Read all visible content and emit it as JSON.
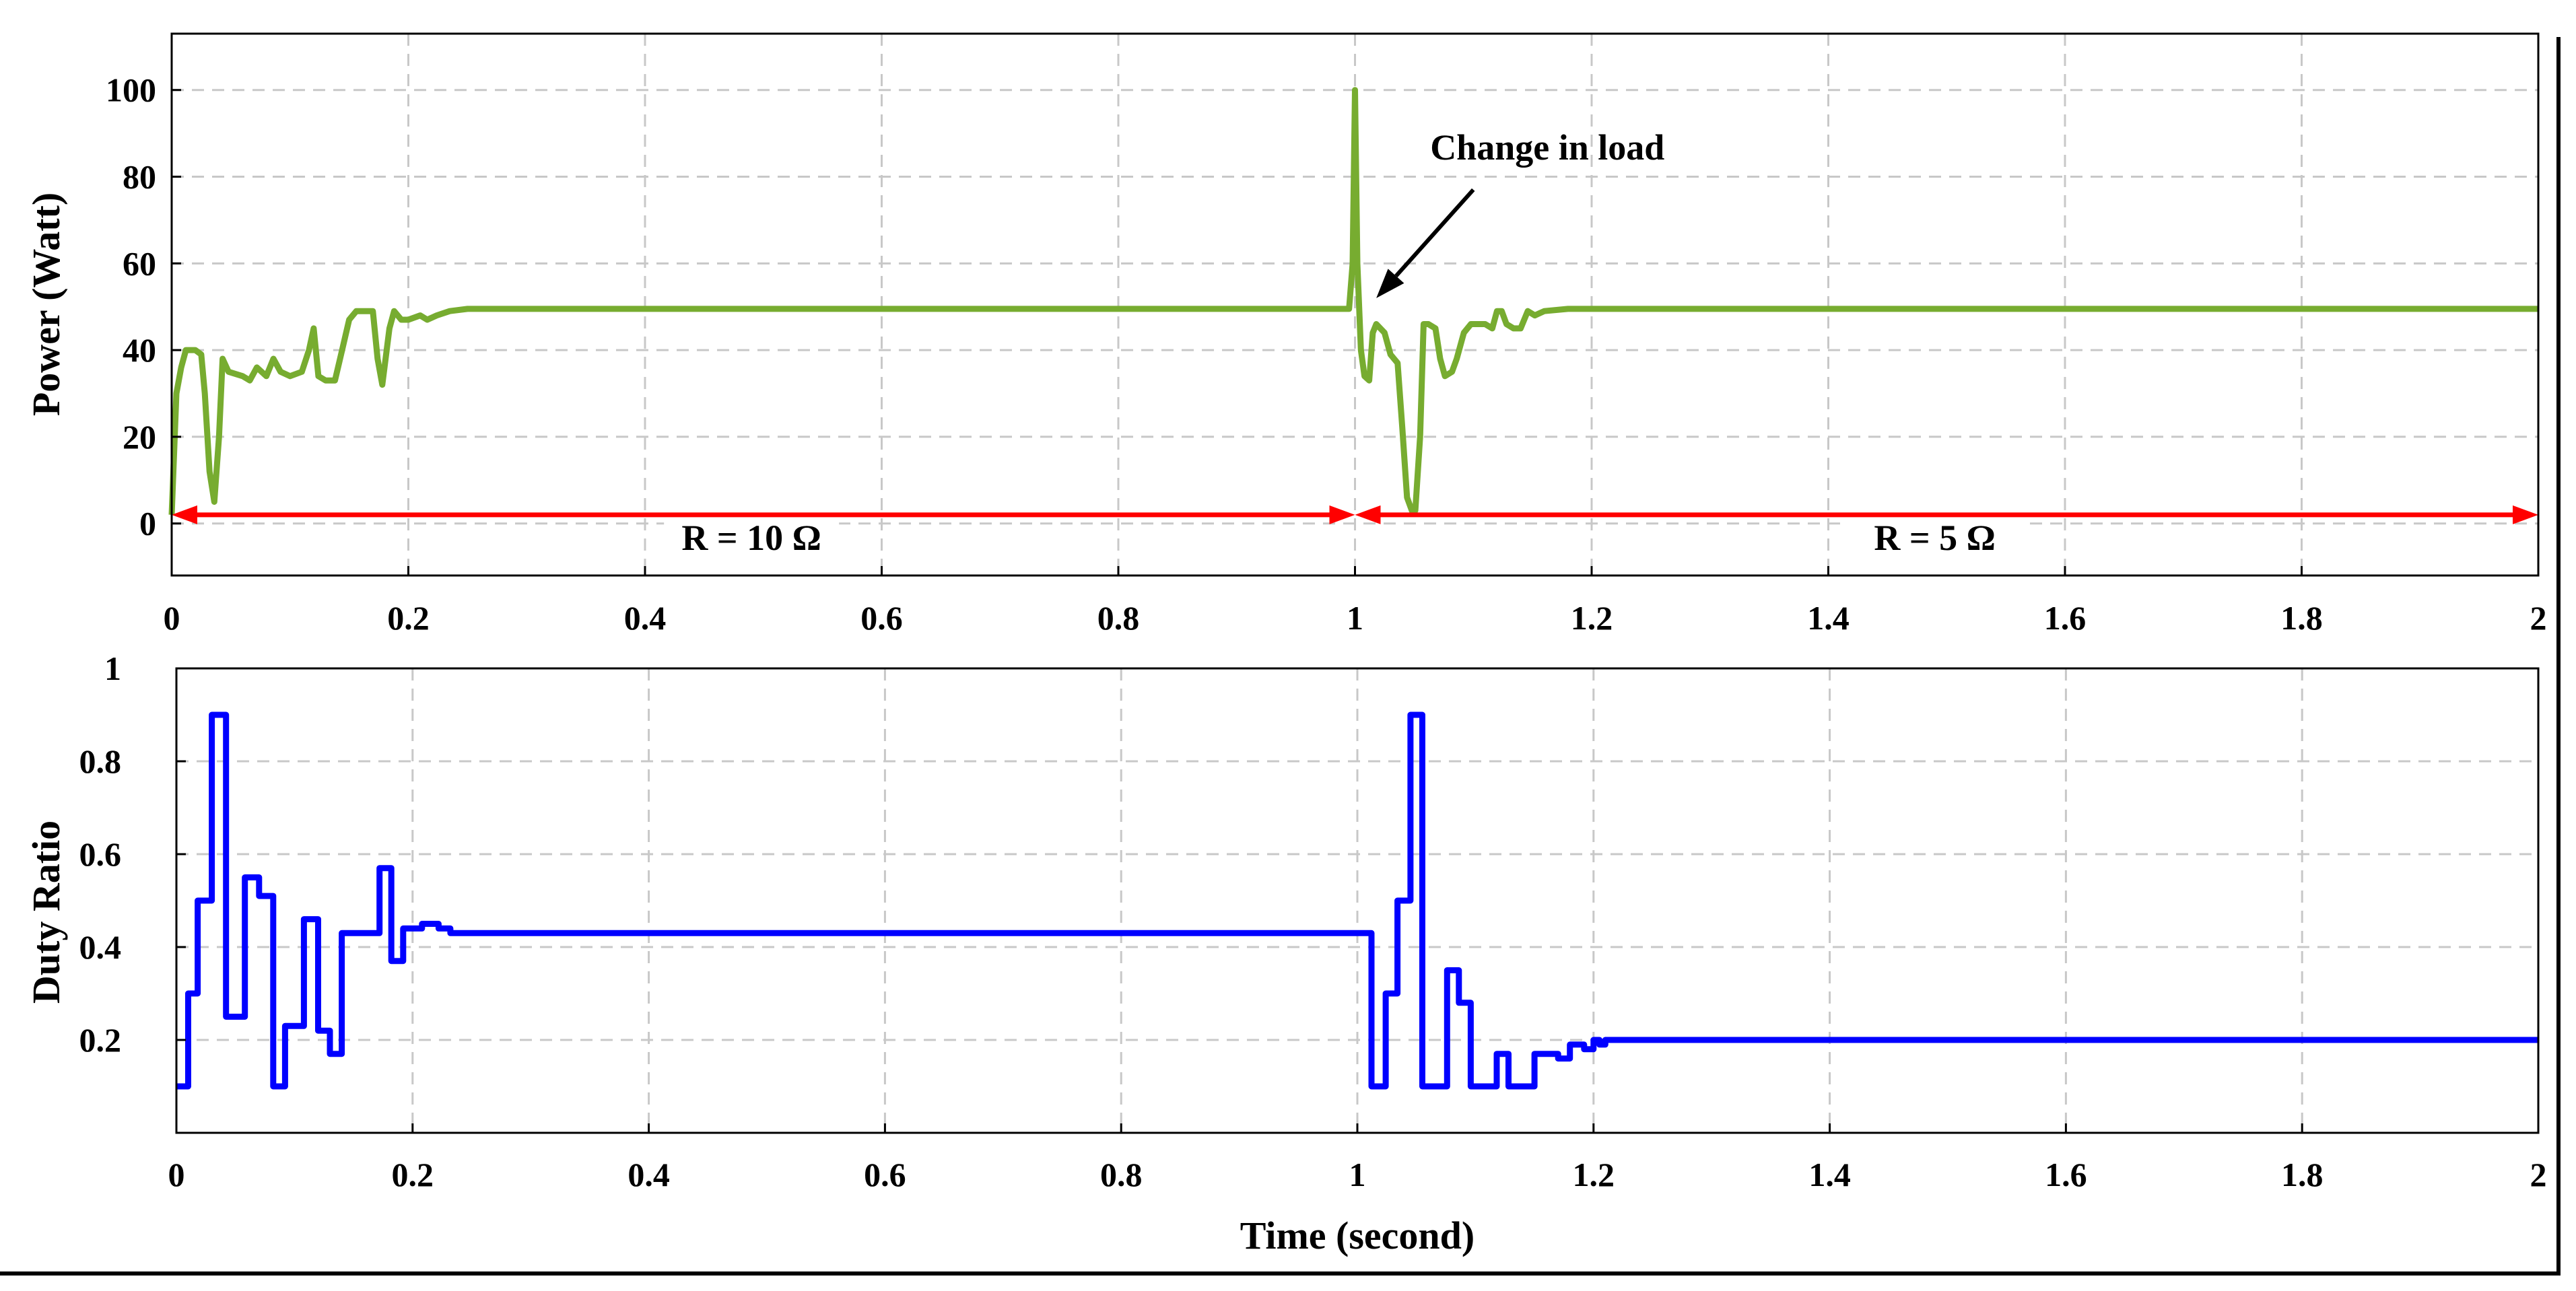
{
  "chart_data": [
    {
      "type": "line",
      "ylabel": "Power (Watt)",
      "xlabel": "",
      "xlim": [
        0,
        2
      ],
      "ylim": [
        -12,
        113
      ],
      "x_ticks": [
        "0",
        "0.2",
        "0.4",
        "0.6",
        "0.8",
        "1",
        "1.2",
        "1.4",
        "1.6",
        "1.8",
        "2"
      ],
      "y_ticks": [
        "0",
        "20",
        "40",
        "60",
        "80",
        "100"
      ],
      "grid": true,
      "series": [
        {
          "name": "Power",
          "color": "#77ac30",
          "points": [
            [
              0.0,
              2
            ],
            [
              0.004,
              30
            ],
            [
              0.008,
              36
            ],
            [
              0.012,
              40
            ],
            [
              0.02,
              40
            ],
            [
              0.025,
              39
            ],
            [
              0.028,
              30
            ],
            [
              0.032,
              12
            ],
            [
              0.036,
              5
            ],
            [
              0.04,
              20
            ],
            [
              0.043,
              38
            ],
            [
              0.048,
              35
            ],
            [
              0.06,
              34
            ],
            [
              0.066,
              33
            ],
            [
              0.072,
              36
            ],
            [
              0.08,
              34
            ],
            [
              0.086,
              38
            ],
            [
              0.092,
              35
            ],
            [
              0.1,
              34
            ],
            [
              0.11,
              35
            ],
            [
              0.116,
              40
            ],
            [
              0.12,
              45
            ],
            [
              0.124,
              34
            ],
            [
              0.13,
              33
            ],
            [
              0.138,
              33
            ],
            [
              0.144,
              40
            ],
            [
              0.15,
              47
            ],
            [
              0.156,
              49
            ],
            [
              0.166,
              49
            ],
            [
              0.17,
              49
            ],
            [
              0.174,
              38
            ],
            [
              0.178,
              32
            ],
            [
              0.184,
              45
            ],
            [
              0.188,
              49
            ],
            [
              0.194,
              47
            ],
            [
              0.2,
              47
            ],
            [
              0.21,
              48
            ],
            [
              0.216,
              47
            ],
            [
              0.224,
              48
            ],
            [
              0.235,
              49
            ],
            [
              0.25,
              49.5
            ],
            [
              0.4,
              49.5
            ],
            [
              0.6,
              49.5
            ],
            [
              0.8,
              49.5
            ],
            [
              0.995,
              49.5
            ],
            [
              0.998,
              60
            ],
            [
              1.0,
              100
            ],
            [
              1.002,
              60
            ],
            [
              1.005,
              40
            ],
            [
              1.008,
              34
            ],
            [
              1.012,
              33
            ],
            [
              1.015,
              44
            ],
            [
              1.018,
              46
            ],
            [
              1.025,
              44
            ],
            [
              1.03,
              39
            ],
            [
              1.036,
              37
            ],
            [
              1.04,
              22
            ],
            [
              1.044,
              6
            ],
            [
              1.048,
              3
            ],
            [
              1.051,
              3
            ],
            [
              1.055,
              20
            ],
            [
              1.058,
              46
            ],
            [
              1.062,
              46
            ],
            [
              1.068,
              45
            ],
            [
              1.072,
              38
            ],
            [
              1.076,
              34
            ],
            [
              1.082,
              35
            ],
            [
              1.086,
              38
            ],
            [
              1.092,
              44
            ],
            [
              1.098,
              46
            ],
            [
              1.11,
              46
            ],
            [
              1.116,
              45
            ],
            [
              1.12,
              49
            ],
            [
              1.124,
              49
            ],
            [
              1.128,
              46
            ],
            [
              1.134,
              45
            ],
            [
              1.14,
              45
            ],
            [
              1.146,
              49
            ],
            [
              1.152,
              48
            ],
            [
              1.16,
              49
            ],
            [
              1.18,
              49.5
            ],
            [
              1.4,
              49.5
            ],
            [
              1.6,
              49.5
            ],
            [
              1.8,
              49.5
            ],
            [
              2.0,
              49.5
            ]
          ]
        },
        {
          "name": "Load region markers",
          "color": "#ff0000",
          "arrows": [
            {
              "from": 0.0,
              "to": 1.0,
              "y": 2,
              "label": "R = 10 Ω",
              "label_x": 0.49
            },
            {
              "from": 1.0,
              "to": 2.0,
              "y": 2,
              "label": "R = 5 Ω",
              "label_x": 1.49
            }
          ]
        }
      ],
      "annotations": [
        {
          "text": "Change in load",
          "text_x": 1.125,
          "text_y": 84,
          "arrow_to_x": 1.018,
          "arrow_to_y": 52,
          "arrow_from_x": 1.1,
          "arrow_from_y": 77
        }
      ]
    },
    {
      "type": "line",
      "ylabel": "Duty Ratio",
      "xlabel": "Time (second)",
      "xlim": [
        0,
        2
      ],
      "ylim": [
        0,
        1
      ],
      "x_ticks": [
        "0",
        "0.2",
        "0.4",
        "0.6",
        "0.8",
        "1",
        "1.2",
        "1.4",
        "1.6",
        "1.8",
        "2"
      ],
      "y_ticks": [
        "0.2",
        "0.4",
        "0.6",
        "0.8",
        "1"
      ],
      "grid": true,
      "series": [
        {
          "name": "Duty Ratio",
          "color": "#0000ff",
          "step": true,
          "points": [
            [
              0.0,
              0.1
            ],
            [
              0.01,
              0.3
            ],
            [
              0.018,
              0.5
            ],
            [
              0.03,
              0.9
            ],
            [
              0.042,
              0.25
            ],
            [
              0.058,
              0.55
            ],
            [
              0.07,
              0.51
            ],
            [
              0.082,
              0.1
            ],
            [
              0.092,
              0.23
            ],
            [
              0.108,
              0.46
            ],
            [
              0.12,
              0.22
            ],
            [
              0.13,
              0.17
            ],
            [
              0.14,
              0.43
            ],
            [
              0.16,
              0.43
            ],
            [
              0.172,
              0.57
            ],
            [
              0.182,
              0.37
            ],
            [
              0.192,
              0.44
            ],
            [
              0.208,
              0.45
            ],
            [
              0.222,
              0.44
            ],
            [
              0.232,
              0.43
            ],
            [
              1.005,
              0.43
            ],
            [
              1.012,
              0.1
            ],
            [
              1.024,
              0.3
            ],
            [
              1.034,
              0.5
            ],
            [
              1.045,
              0.9
            ],
            [
              1.055,
              0.1
            ],
            [
              1.076,
              0.35
            ],
            [
              1.086,
              0.28
            ],
            [
              1.096,
              0.1
            ],
            [
              1.118,
              0.17
            ],
            [
              1.128,
              0.1
            ],
            [
              1.15,
              0.17
            ],
            [
              1.17,
              0.16
            ],
            [
              1.18,
              0.19
            ],
            [
              1.192,
              0.18
            ],
            [
              1.2,
              0.2
            ],
            [
              1.205,
              0.19
            ],
            [
              1.21,
              0.2
            ],
            [
              2.0,
              0.2
            ]
          ]
        }
      ]
    }
  ]
}
